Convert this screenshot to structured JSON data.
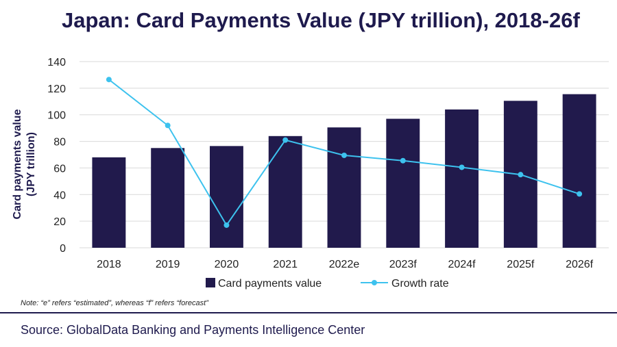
{
  "title": "Japan: Card Payments Value (JPY trillion), 2018-26f",
  "note": "Note: “e” refers “estimated”, whereas “f” refers “forecast”",
  "source": "Source: GlobalData Banking and Payments Intelligence Center",
  "colors": {
    "bar": "#211a4c",
    "line": "#3dc2ee",
    "grid": "#d9d9d9",
    "title": "#1e1a4d"
  },
  "chart_data": {
    "type": "bar",
    "categories": [
      "2018",
      "2019",
      "2020",
      "2021",
      "2022e",
      "2023f",
      "2024f",
      "2025f",
      "2026f"
    ],
    "ylabel_lines": [
      "Card payments value",
      "(JPY trillion)"
    ],
    "ylim": [
      0,
      140
    ],
    "yticks": [
      "0",
      "20",
      "40",
      "60",
      "80",
      "100",
      "120",
      "140"
    ],
    "grid": true,
    "legend_position": "bottom",
    "series": [
      {
        "name": "Card payments value",
        "type": "bar",
        "values": [
          68,
          75,
          76.5,
          84,
          90.5,
          97,
          104,
          110.5,
          115.5
        ]
      },
      {
        "name": "Growth rate",
        "type": "line",
        "values": [
          126.5,
          92,
          17,
          81,
          69.5,
          65.5,
          60.5,
          55,
          40.5
        ]
      }
    ]
  }
}
